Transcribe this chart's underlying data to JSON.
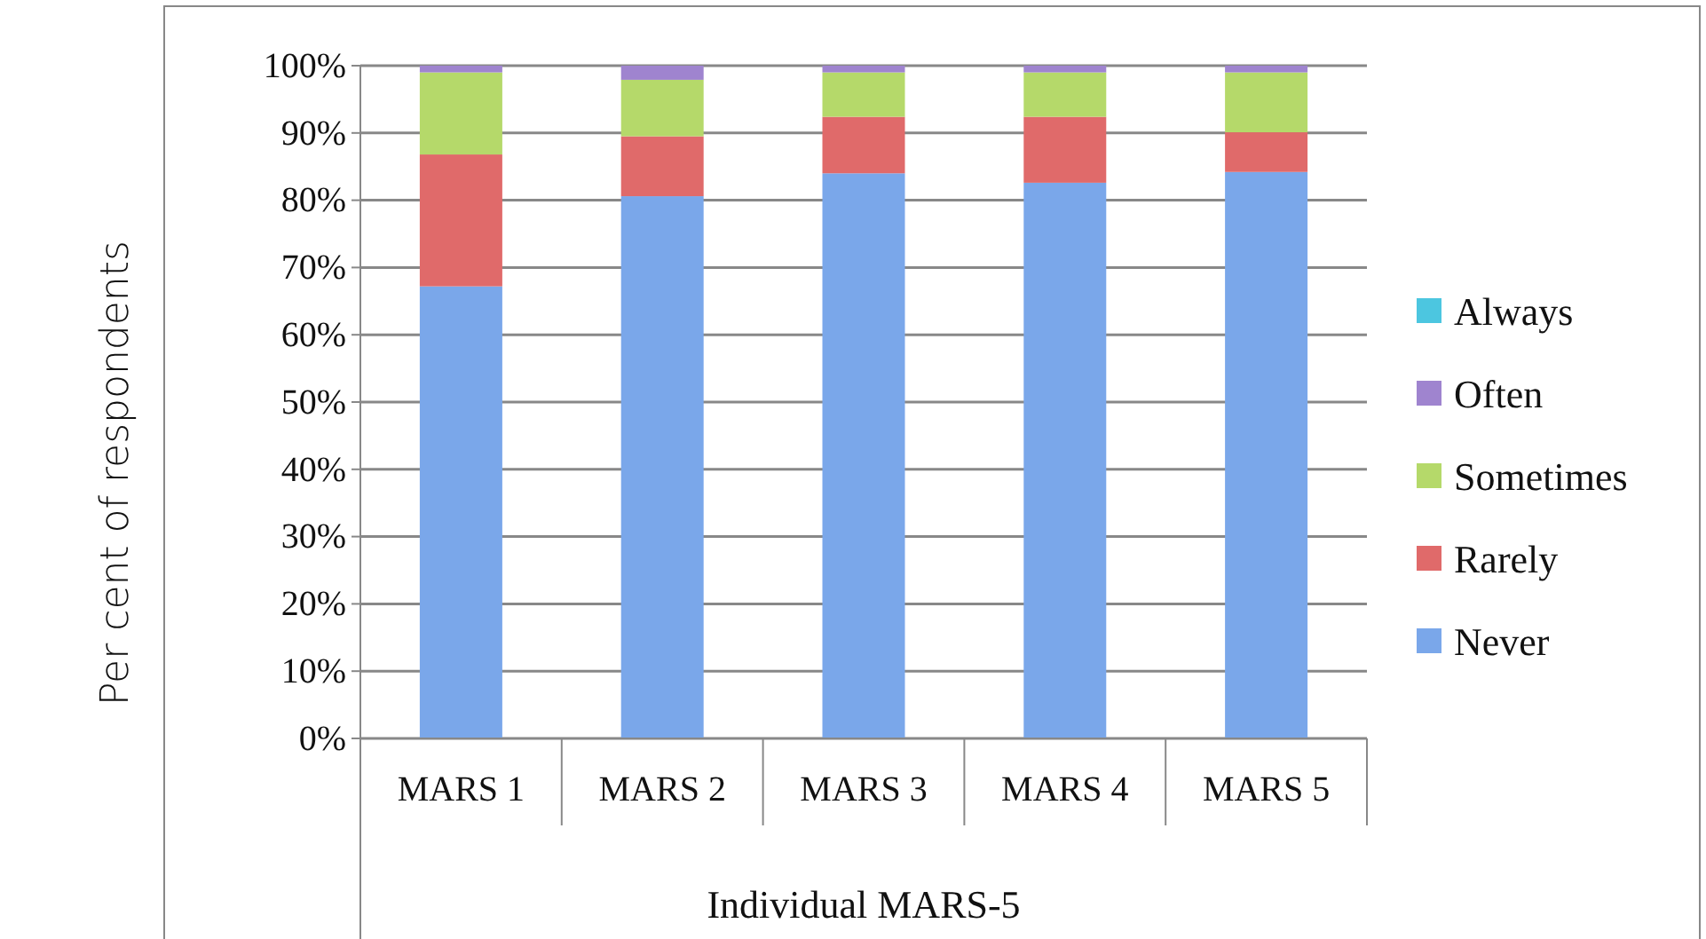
{
  "chart_data": {
    "type": "bar",
    "stacked": true,
    "xlabel": "Individual MARS-5",
    "ylabel": "Per cent of respondents",
    "categories": [
      "MARS 1",
      "MARS 2",
      "MARS 3",
      "MARS 4",
      "MARS 5"
    ],
    "series": [
      {
        "name": "Never",
        "color": "#7aa7ea",
        "values": [
          67.2,
          80.6,
          84.0,
          82.6,
          84.2
        ]
      },
      {
        "name": "Rarely",
        "color": "#e06a6a",
        "values": [
          19.6,
          8.9,
          8.4,
          9.8,
          5.9
        ]
      },
      {
        "name": "Sometimes",
        "color": "#b5d96a",
        "values": [
          12.2,
          8.4,
          6.6,
          6.6,
          8.9
        ]
      },
      {
        "name": "Often",
        "color": "#9f84cf",
        "values": [
          1.0,
          2.1,
          1.0,
          1.0,
          1.0
        ]
      },
      {
        "name": "Always",
        "color": "#4cc6e0",
        "values": [
          0,
          0,
          0,
          0,
          0
        ]
      }
    ],
    "ylim": [
      0,
      100
    ],
    "yticks": [
      {
        "value": 0,
        "label": "0%"
      },
      {
        "value": 10,
        "label": "10%"
      },
      {
        "value": 20,
        "label": "20%"
      },
      {
        "value": 30,
        "label": "30%"
      },
      {
        "value": 40,
        "label": "40%"
      },
      {
        "value": 50,
        "label": "50%"
      },
      {
        "value": 60,
        "label": "60%"
      },
      {
        "value": 70,
        "label": "70%"
      },
      {
        "value": 80,
        "label": "80%"
      },
      {
        "value": 90,
        "label": "90%"
      },
      {
        "value": 100,
        "label": "100%"
      }
    ],
    "grid": "y",
    "legend": "right"
  }
}
